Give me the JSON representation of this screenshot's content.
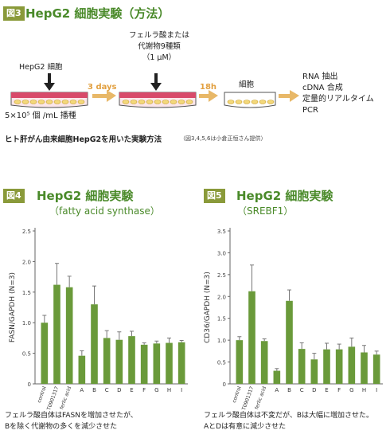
{
  "fig3": {
    "badge": "図3",
    "title": "HepG2 細胞実験（方法）",
    "step1_label": "HepG2 細胞",
    "seeding": "5×10⁵ 個 /mL 播種",
    "arrow1": "3 days",
    "step2_lines": [
      "フェルラ酸または",
      "代謝物9種類",
      "（1 μM）"
    ],
    "arrow2": "18h",
    "step3_label": "細胞",
    "result_lines": [
      "RNA 抽出",
      "cDNA 合成",
      "定量的リアルタイム",
      "PCR"
    ],
    "caption": "ヒト肝がん由来細胞HepG2を用いた実験方法",
    "credit": "（図3,4,5,6は小倉正恒さん提供）"
  },
  "fig4": {
    "badge": "図4",
    "title": "HepG2 細胞実験",
    "subtitle": "（fatty acid synthase）",
    "caption_lines": [
      "フェルラ酸自体はFASNを増加させたが、",
      "Bを除く代謝物の多くを減少させた"
    ]
  },
  "fig5": {
    "badge": "図5",
    "title": "HepG2 細胞実験",
    "subtitle": "（SREBF1）",
    "caption_lines": [
      "フェルラ酸自体は不変だが、Bは大幅に増加させた。",
      "AとDは有意に減少させた"
    ]
  },
  "colors": {
    "bar": "#6a9a3a",
    "accent": "#4a8a2a",
    "badge": "#8a9a3a",
    "arrow": "#e8b868"
  },
  "chart_data": [
    {
      "type": "bar",
      "title": "",
      "ylabel": "FASN/GAPDH (N=3)",
      "ylim": [
        0,
        2.5
      ],
      "yticks": [
        0,
        0.5,
        1.0,
        1.5,
        2.0,
        2.5
      ],
      "categories": [
        "control",
        "T0901317",
        "ferlic acid",
        "A",
        "B",
        "C",
        "D",
        "E",
        "F",
        "G",
        "H",
        "I"
      ],
      "values": [
        1.0,
        1.62,
        1.58,
        0.46,
        1.3,
        0.75,
        0.72,
        0.78,
        0.64,
        0.66,
        0.67,
        0.68
      ],
      "errors": [
        0.12,
        0.35,
        0.18,
        0.08,
        0.3,
        0.12,
        0.13,
        0.08,
        0.03,
        0.04,
        0.08,
        0.03
      ]
    },
    {
      "type": "bar",
      "title": "",
      "ylabel": "CD36/GAPDH (N=3)",
      "ylim": [
        0,
        3.5
      ],
      "yticks": [
        0,
        0.5,
        1.0,
        1.5,
        2.0,
        2.5,
        3.0,
        3.5
      ],
      "categories": [
        "control",
        "T0901317",
        "ferlic acid",
        "A",
        "B",
        "C",
        "D",
        "E",
        "F",
        "G",
        "H",
        "I"
      ],
      "values": [
        1.0,
        2.12,
        0.98,
        0.3,
        1.9,
        0.8,
        0.56,
        0.79,
        0.79,
        0.85,
        0.72,
        0.67
      ],
      "errors": [
        0.08,
        0.6,
        0.05,
        0.05,
        0.25,
        0.14,
        0.14,
        0.14,
        0.12,
        0.2,
        0.16,
        0.08
      ]
    }
  ]
}
